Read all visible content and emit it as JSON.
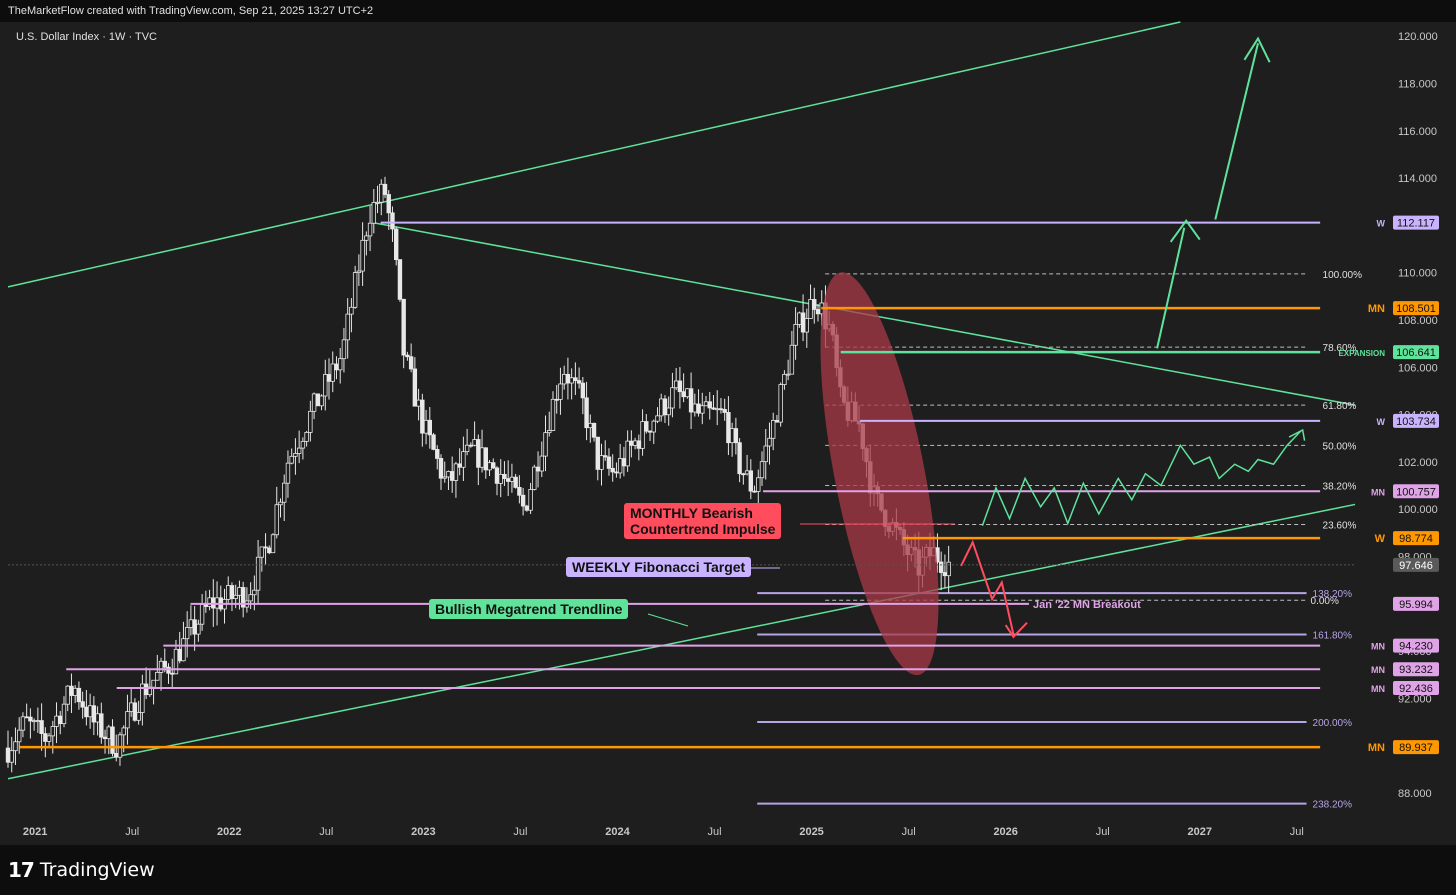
{
  "header": {
    "credit": "TheMarketFlow created with TradingView.com, Sep 21, 2025 13:27 UTC+2",
    "symbol": "U.S. Dollar Index · 1W · TVC"
  },
  "brand": {
    "mark": "17",
    "name": "TradingView"
  },
  "colors": {
    "background": "#1e1e1e",
    "candle": "#e8e8e8",
    "green": "#5fe39b",
    "orange": "#ff9800",
    "purple": "#c9b3ff",
    "pink": "#e0a3e8",
    "red": "#ff4d5e",
    "ellipse": "#a83a47"
  },
  "chart_data": {
    "type": "candlestick",
    "symbol": "U.S. Dollar Index",
    "timeframe": "1W",
    "ylim": [
      85.8,
      120.6
    ],
    "xlim": [
      2020.86,
      2027.98
    ],
    "y_ticks": [
      "88.000",
      "92.000",
      "94.000",
      "98.000",
      "100.000",
      "102.000",
      "104.000",
      "106.000",
      "108.000",
      "110.000",
      "114.000",
      "116.000",
      "118.000",
      "120.000"
    ],
    "x_ticks": [
      {
        "label": "2021",
        "t": 2021.0
      },
      {
        "label": "Jul",
        "t": 2021.5
      },
      {
        "label": "2022",
        "t": 2022.0
      },
      {
        "label": "Jul",
        "t": 2022.5
      },
      {
        "label": "2023",
        "t": 2023.0
      },
      {
        "label": "Jul",
        "t": 2023.5
      },
      {
        "label": "2024",
        "t": 2024.0
      },
      {
        "label": "Jul",
        "t": 2024.5
      },
      {
        "label": "2025",
        "t": 2025.0
      },
      {
        "label": "Jul",
        "t": 2025.5
      },
      {
        "label": "2026",
        "t": 2026.0
      },
      {
        "label": "Jul",
        "t": 2026.5
      },
      {
        "label": "2027",
        "t": 2027.0
      },
      {
        "label": "Jul",
        "t": 2027.5
      }
    ],
    "price_path": [
      [
        2020.86,
        89.9
      ],
      [
        2020.95,
        91.0
      ],
      [
        2021.05,
        90.3
      ],
      [
        2021.2,
        92.5
      ],
      [
        2021.3,
        91.0
      ],
      [
        2021.42,
        90.0
      ],
      [
        2021.55,
        92.3
      ],
      [
        2021.7,
        93.5
      ],
      [
        2021.9,
        96.0
      ],
      [
        2022.1,
        96.5
      ],
      [
        2022.2,
        98.5
      ],
      [
        2022.3,
        102.0
      ],
      [
        2022.45,
        104.5
      ],
      [
        2022.58,
        106.5
      ],
      [
        2022.72,
        112.5
      ],
      [
        2022.8,
        113.5
      ],
      [
        2022.85,
        111.0
      ],
      [
        2022.9,
        106.5
      ],
      [
        2023.0,
        103.5
      ],
      [
        2023.12,
        101.0
      ],
      [
        2023.25,
        102.5
      ],
      [
        2023.4,
        101.5
      ],
      [
        2023.52,
        100.0
      ],
      [
        2023.6,
        102.5
      ],
      [
        2023.72,
        106.0
      ],
      [
        2023.82,
        104.5
      ],
      [
        2023.9,
        102.0
      ],
      [
        2023.98,
        101.5
      ],
      [
        2024.15,
        103.5
      ],
      [
        2024.3,
        105.0
      ],
      [
        2024.42,
        104.0
      ],
      [
        2024.55,
        104.0
      ],
      [
        2024.62,
        102.0
      ],
      [
        2024.7,
        100.8
      ],
      [
        2024.8,
        103.5
      ],
      [
        2024.92,
        107.5
      ],
      [
        2025.02,
        109.0
      ],
      [
        2025.1,
        107.5
      ],
      [
        2025.15,
        104.5
      ],
      [
        2025.25,
        103.5
      ],
      [
        2025.32,
        100.5
      ],
      [
        2025.4,
        99.5
      ],
      [
        2025.47,
        98.5
      ],
      [
        2025.55,
        97.5
      ],
      [
        2025.62,
        98.2
      ],
      [
        2025.68,
        97.8
      ],
      [
        2025.72,
        97.65
      ]
    ],
    "levels": [
      {
        "label": "W",
        "value": "112.117",
        "price": 112.117,
        "color": "#c9b3ff"
      },
      {
        "label": "MN",
        "value": "108.501",
        "price": 108.501,
        "color": "#ff9800"
      },
      {
        "label": "EXPANSION",
        "value": "106.641",
        "price": 106.641,
        "color": "#5fe39b"
      },
      {
        "label": "W",
        "value": "103.734",
        "price": 103.734,
        "color": "#c9b3ff"
      },
      {
        "label": "MN",
        "value": "100.757",
        "price": 100.757,
        "color": "#e0a3e8"
      },
      {
        "label": "W",
        "value": "98.774",
        "price": 98.774,
        "color": "#ff9800"
      },
      {
        "label": "",
        "value": "97.646",
        "price": 97.646,
        "color": "#5a5a5a"
      },
      {
        "label": "Jan '22 MN Breakout",
        "value": "95.994",
        "price": 95.994,
        "color": "#e0a3e8"
      },
      {
        "label": "MN",
        "value": "94.230",
        "price": 94.23,
        "color": "#e0a3e8"
      },
      {
        "label": "MN",
        "value": "93.232",
        "price": 93.232,
        "color": "#e0a3e8"
      },
      {
        "label": "MN",
        "value": "92.436",
        "price": 92.436,
        "color": "#e0a3e8"
      },
      {
        "label": "MN",
        "value": "89.937",
        "price": 89.937,
        "color": "#ff9800"
      }
    ],
    "fib_levels": [
      {
        "label": "100.00%",
        "price": 109.95
      },
      {
        "label": "78.60%",
        "price": 106.85
      },
      {
        "label": "61.80%",
        "price": 104.4
      },
      {
        "label": "50.00%",
        "price": 102.7
      },
      {
        "label": "38.20%",
        "price": 101.0
      },
      {
        "label": "23.60%",
        "price": 99.35
      },
      {
        "label": "0.00%",
        "price": 96.15
      }
    ],
    "fib_extensions": [
      {
        "label": "138.20%",
        "price": 96.45
      },
      {
        "label": "161.80%",
        "price": 94.7
      },
      {
        "label": "200.00%",
        "price": 91.0
      },
      {
        "label": "238.20%",
        "price": 87.55
      }
    ],
    "annotations": [
      {
        "text": "MONTHLY Bearish\nCountertrend Impulse",
        "style": "red"
      },
      {
        "text": "WEEKLY Fibonacci Target",
        "style": "purple"
      },
      {
        "text": "Bullish Megatrend Trendline",
        "style": "green"
      }
    ]
  }
}
